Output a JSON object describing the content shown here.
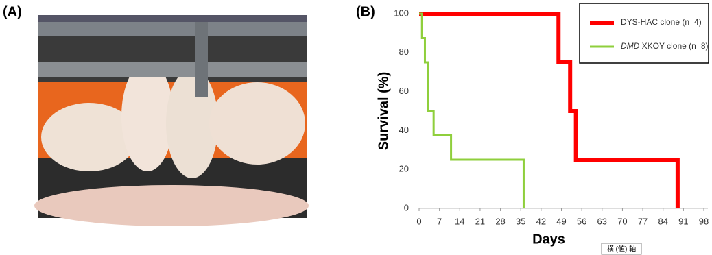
{
  "panel_a": {
    "label": "(A)"
  },
  "chart_data": {
    "type": "step",
    "label": "(B)",
    "x_label": "Days",
    "y_label": "Survival (%)",
    "xlim": [
      0,
      98
    ],
    "ylim": [
      0,
      100
    ],
    "xticks": [
      0,
      7,
      14,
      21,
      28,
      35,
      42,
      49,
      56,
      63,
      70,
      77,
      84,
      91,
      98
    ],
    "yticks": [
      0,
      20,
      40,
      60,
      80,
      100
    ],
    "legend": "upper right",
    "series": [
      {
        "name": "DYS-HAC clone (n=4)",
        "color": "#ff0000",
        "x": [
          0,
          48,
          52,
          54,
          89
        ],
        "values": [
          100,
          75,
          50,
          25,
          0
        ]
      },
      {
        "name": "DMD XKOY clone (n=8)",
        "color": "#8fcf3c",
        "x": [
          0,
          1,
          2,
          3,
          5,
          11,
          36
        ],
        "values": [
          100,
          87.5,
          75,
          50,
          37.5,
          25,
          0
        ]
      }
    ],
    "tooltip": "横 (値) 軸"
  }
}
